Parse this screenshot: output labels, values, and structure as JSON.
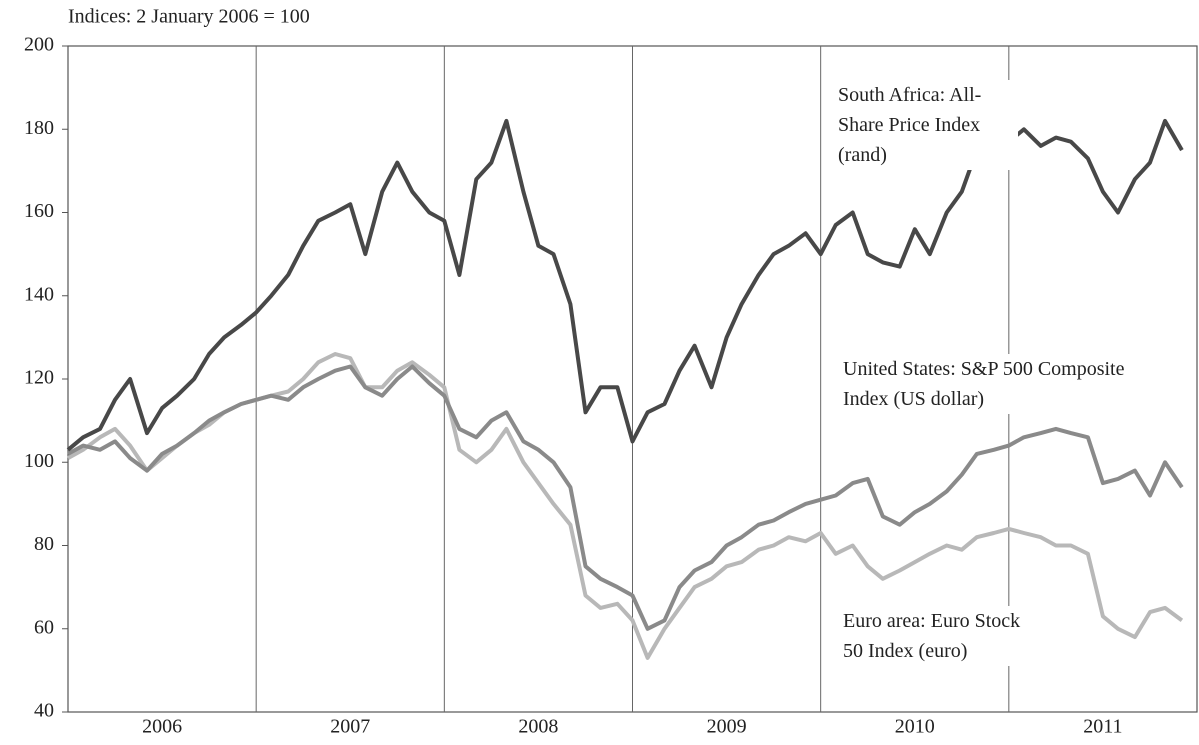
{
  "chart_data": {
    "type": "line",
    "ylabel": "Indices: 2 January 2006 = 100",
    "ylim": [
      40,
      200
    ],
    "yticks": [
      40,
      60,
      80,
      100,
      120,
      140,
      160,
      180,
      200
    ],
    "xlim": [
      2006,
      2012
    ],
    "xticks": [
      {
        "value": 2006.5,
        "label": "2006"
      },
      {
        "value": 2007.5,
        "label": "2007"
      },
      {
        "value": 2008.5,
        "label": "2008"
      },
      {
        "value": 2009.5,
        "label": "2009"
      },
      {
        "value": 2010.5,
        "label": "2010"
      },
      {
        "value": 2011.5,
        "label": "2011"
      }
    ],
    "vlines": [
      2007,
      2008,
      2009,
      2010,
      2011
    ],
    "x": [
      2006.0,
      2006.08,
      2006.17,
      2006.25,
      2006.33,
      2006.42,
      2006.5,
      2006.58,
      2006.67,
      2006.75,
      2006.83,
      2006.92,
      2007.0,
      2007.08,
      2007.17,
      2007.25,
      2007.33,
      2007.42,
      2007.5,
      2007.58,
      2007.67,
      2007.75,
      2007.83,
      2007.92,
      2008.0,
      2008.08,
      2008.17,
      2008.25,
      2008.33,
      2008.42,
      2008.5,
      2008.58,
      2008.67,
      2008.75,
      2008.83,
      2008.92,
      2009.0,
      2009.08,
      2009.17,
      2009.25,
      2009.33,
      2009.42,
      2009.5,
      2009.58,
      2009.67,
      2009.75,
      2009.83,
      2009.92,
      2010.0,
      2010.08,
      2010.17,
      2010.25,
      2010.33,
      2010.42,
      2010.5,
      2010.58,
      2010.67,
      2010.75,
      2010.83,
      2010.92,
      2011.0,
      2011.08,
      2011.17,
      2011.25,
      2011.33,
      2011.42,
      2011.5,
      2011.58,
      2011.67,
      2011.75,
      2011.83,
      2011.92
    ],
    "series": [
      {
        "name": "South Africa: All-Share Price Index (rand)",
        "color": "#484848",
        "values": [
          103,
          106,
          108,
          115,
          120,
          107,
          113,
          116,
          120,
          126,
          130,
          133,
          136,
          140,
          145,
          152,
          158,
          160,
          162,
          150,
          165,
          172,
          165,
          160,
          158,
          145,
          168,
          172,
          182,
          165,
          152,
          150,
          138,
          112,
          118,
          118,
          105,
          112,
          114,
          122,
          128,
          118,
          130,
          138,
          145,
          150,
          152,
          155,
          150,
          157,
          160,
          150,
          148,
          147,
          156,
          150,
          160,
          165,
          175,
          177,
          177,
          180,
          176,
          178,
          177,
          173,
          165,
          160,
          168,
          172,
          182,
          175
        ]
      },
      {
        "name": "United States: S&P 500 Composite Index (US dollar)",
        "color": "#8a8a8a",
        "values": [
          102,
          104,
          103,
          105,
          101,
          98,
          102,
          104,
          107,
          110,
          112,
          114,
          115,
          116,
          115,
          118,
          120,
          122,
          123,
          118,
          116,
          120,
          123,
          119,
          116,
          108,
          106,
          110,
          112,
          105,
          103,
          100,
          94,
          75,
          72,
          70,
          68,
          60,
          62,
          70,
          74,
          76,
          80,
          82,
          85,
          86,
          88,
          90,
          91,
          92,
          95,
          96,
          87,
          85,
          88,
          90,
          93,
          97,
          102,
          103,
          104,
          106,
          107,
          108,
          107,
          106,
          95,
          96,
          98,
          92,
          100,
          94
        ]
      },
      {
        "name": "Euro area: Euro Stock 50 Index (euro)",
        "color": "#b8b8b8",
        "values": [
          101,
          103,
          106,
          108,
          104,
          98,
          101,
          104,
          107,
          109,
          112,
          114,
          115,
          116,
          117,
          120,
          124,
          126,
          125,
          118,
          118,
          122,
          124,
          121,
          118,
          103,
          100,
          103,
          108,
          100,
          95,
          90,
          85,
          68,
          65,
          66,
          62,
          53,
          60,
          65,
          70,
          72,
          75,
          76,
          79,
          80,
          82,
          81,
          83,
          78,
          80,
          75,
          72,
          74,
          76,
          78,
          80,
          79,
          82,
          83,
          84,
          83,
          82,
          80,
          80,
          78,
          63,
          60,
          58,
          64,
          65,
          62
        ]
      }
    ]
  }
}
